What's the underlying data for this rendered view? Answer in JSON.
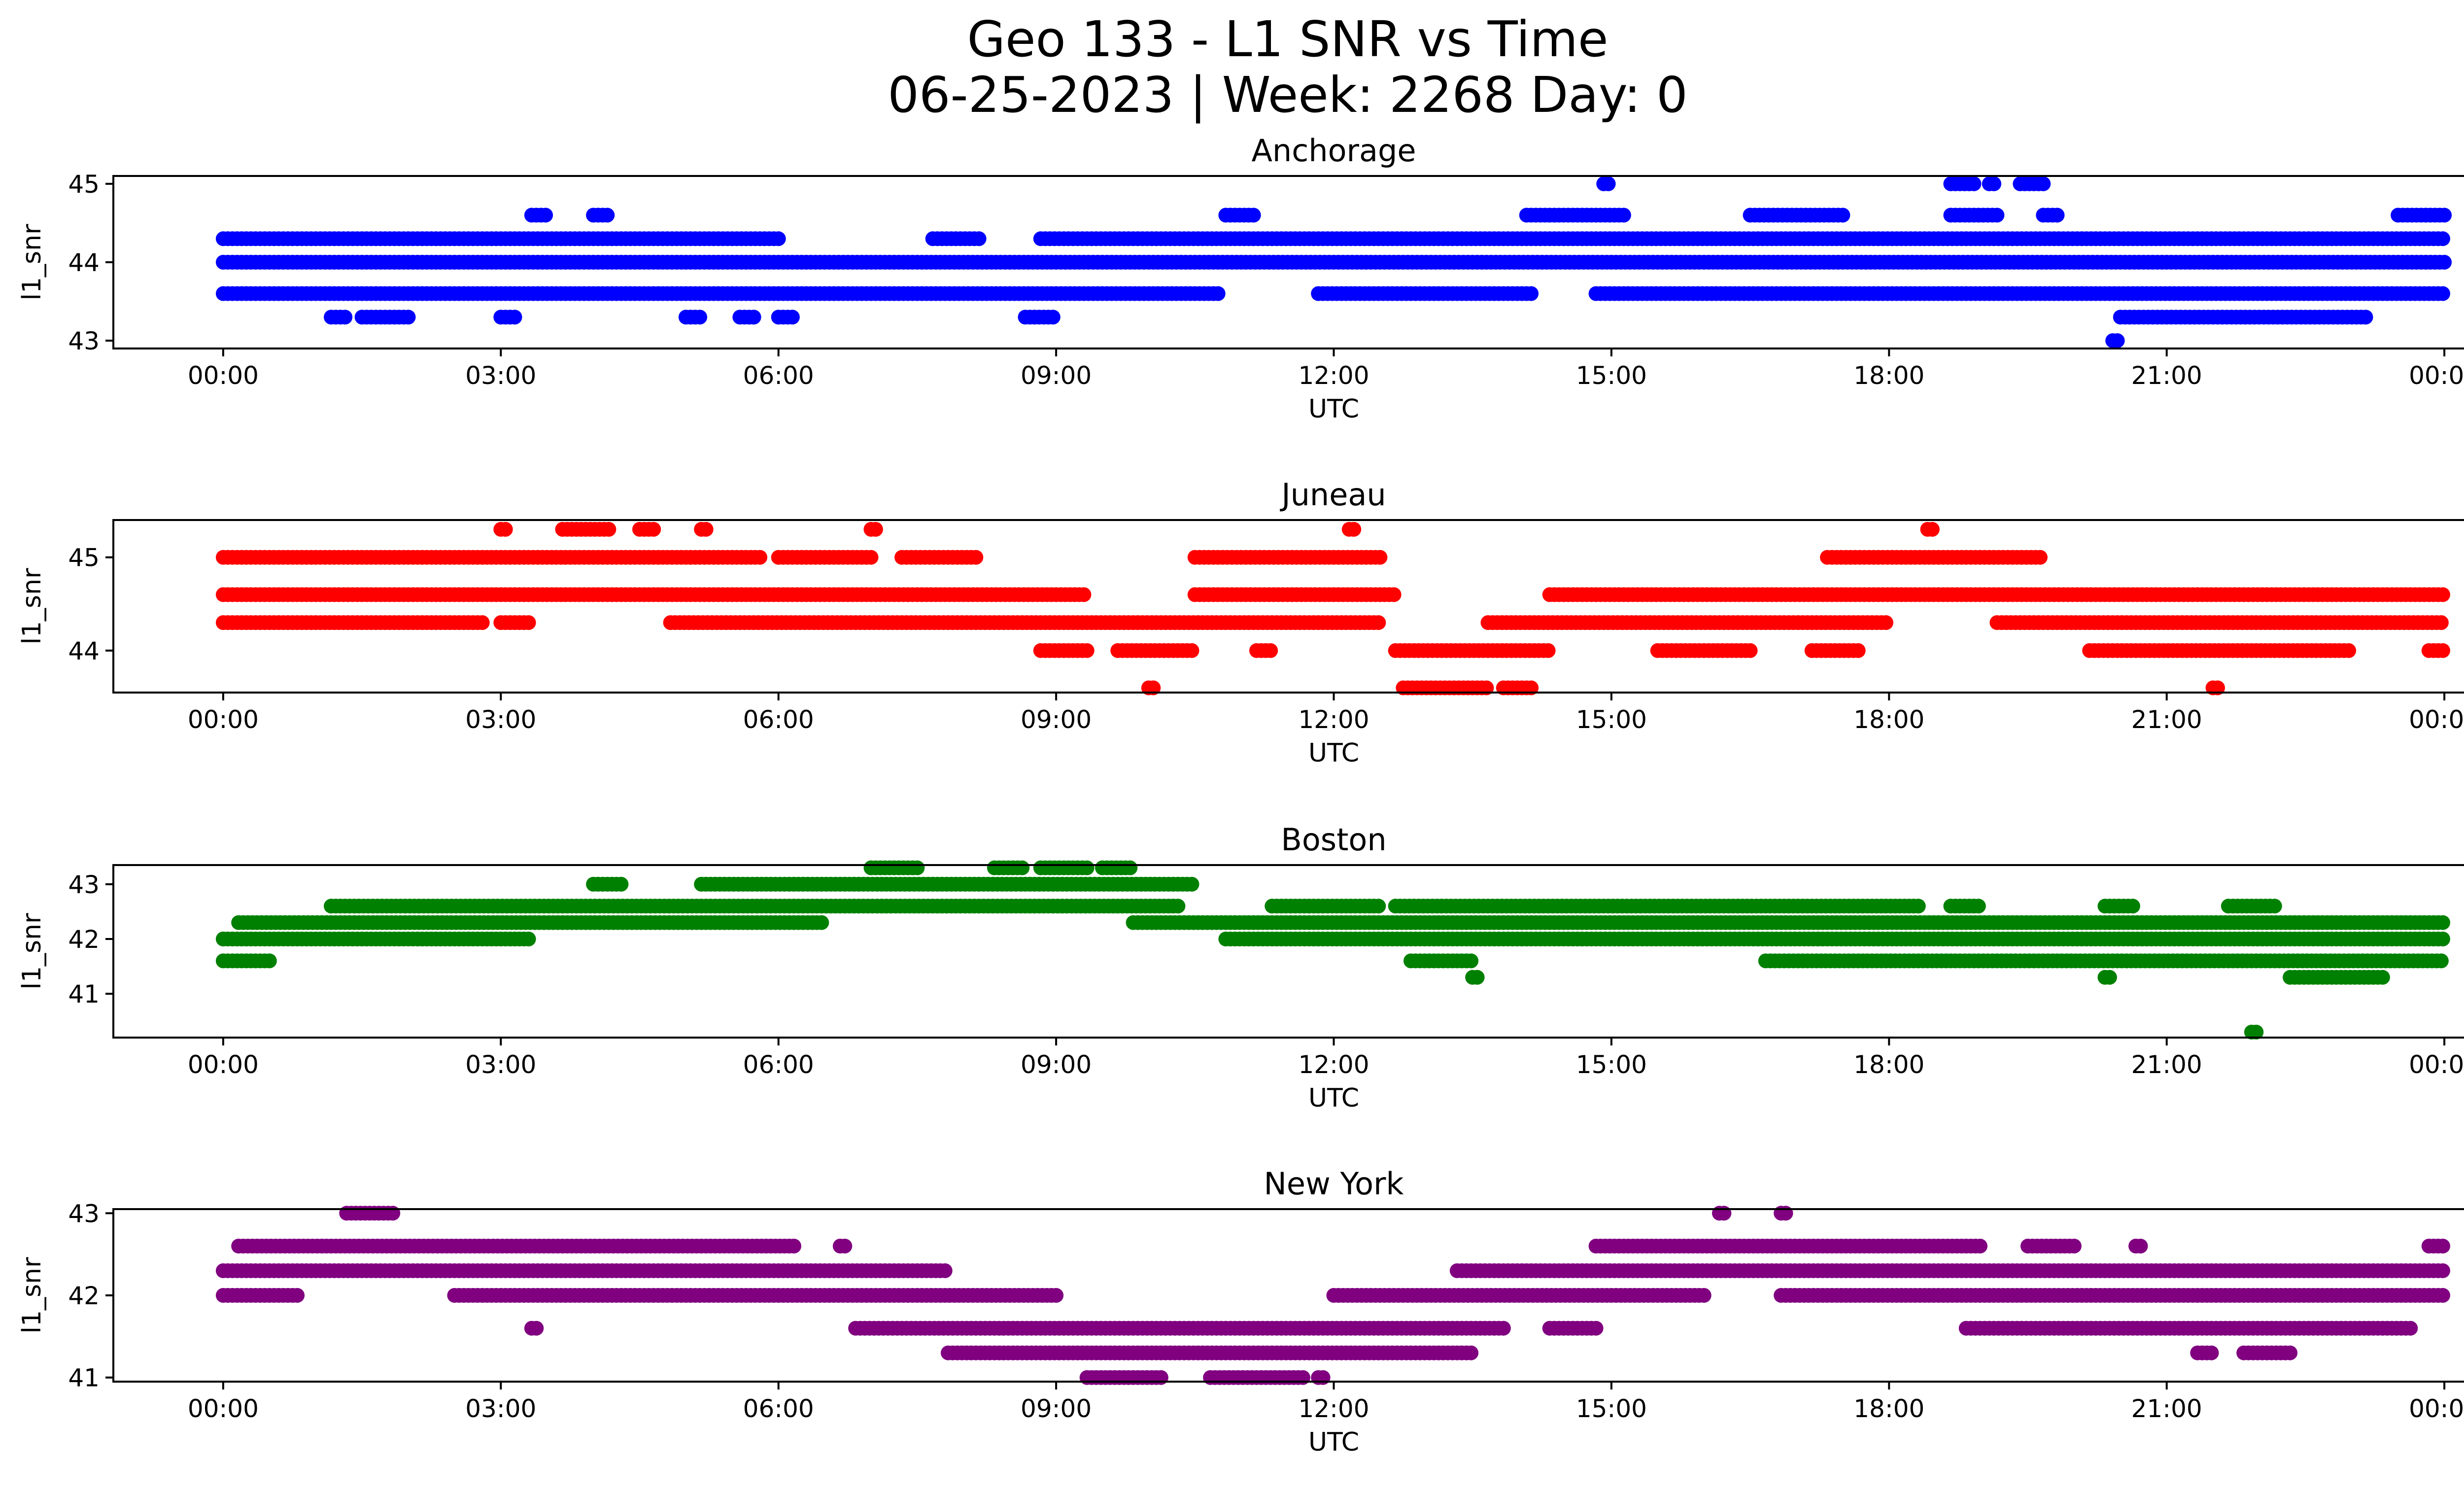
{
  "figure": {
    "title_line1": "Geo 133 - L1 SNR vs Time",
    "title_line2": "06-25-2023 | Week: 2268 Day: 0"
  },
  "chart_data": [
    {
      "type": "scatter",
      "title": "Anchorage",
      "xlabel": "UTC",
      "ylabel": "l1_snr",
      "color": "#0000ff",
      "xticks": [
        "00:00",
        "03:00",
        "06:00",
        "09:00",
        "12:00",
        "15:00",
        "18:00",
        "21:00",
        "00:00"
      ],
      "yticks": [
        43,
        44,
        45
      ],
      "ylim": [
        42.9,
        45.1
      ],
      "xlim": [
        "2023-06-25 00:00",
        "2023-06-26 00:00"
      ],
      "series": [
        {
          "level": 44.0,
          "segments": [
            [
              "00:00",
              "24:00"
            ]
          ]
        },
        {
          "level": 43.6,
          "segments": [
            [
              "00:00",
              "10:45"
            ],
            [
              "11:50",
              "14:10"
            ],
            [
              "14:50",
              "24:00"
            ]
          ]
        },
        {
          "level": 44.3,
          "segments": [
            [
              "00:00",
              "06:00"
            ],
            [
              "07:40",
              "08:10"
            ],
            [
              "08:50",
              "24:00"
            ]
          ]
        },
        {
          "level": 43.3,
          "segments": [
            [
              "01:10",
              "01:20"
            ],
            [
              "01:30",
              "02:00"
            ],
            [
              "03:00",
              "03:10"
            ],
            [
              "05:00",
              "05:10"
            ],
            [
              "05:35",
              "05:45"
            ],
            [
              "06:00",
              "06:10"
            ],
            [
              "08:40",
              "09:00"
            ],
            [
              "20:30",
              "23:10"
            ]
          ]
        },
        {
          "level": 44.6,
          "segments": [
            [
              "03:20",
              "03:30"
            ],
            [
              "04:00",
              "04:10"
            ],
            [
              "10:50",
              "11:10"
            ],
            [
              "14:05",
              "15:10"
            ],
            [
              "16:30",
              "17:30"
            ],
            [
              "18:40",
              "19:10"
            ],
            [
              "19:40",
              "19:50"
            ],
            [
              "23:30",
              "24:00"
            ]
          ]
        },
        {
          "level": 45.0,
          "segments": [
            [
              "14:55",
              "14:58"
            ],
            [
              "18:40",
              "18:55"
            ],
            [
              "19:05",
              "19:10"
            ],
            [
              "19:25",
              "19:40"
            ]
          ]
        },
        {
          "level": 43.0,
          "segments": [
            [
              "20:25",
              "20:30"
            ]
          ]
        }
      ]
    },
    {
      "type": "scatter",
      "title": "Juneau",
      "xlabel": "UTC",
      "ylabel": "l1_snr",
      "color": "#ff0000",
      "xticks": [
        "00:00",
        "03:00",
        "06:00",
        "09:00",
        "12:00",
        "15:00",
        "18:00",
        "21:00",
        "00:00"
      ],
      "yticks": [
        44,
        45
      ],
      "ylim": [
        43.55,
        45.4
      ],
      "xlim": [
        "2023-06-25 00:00",
        "2023-06-26 00:00"
      ],
      "series": [
        {
          "level": 45.0,
          "segments": [
            [
              "00:00",
              "05:50"
            ],
            [
              "06:00",
              "07:00"
            ],
            [
              "07:20",
              "08:10"
            ],
            [
              "10:30",
              "12:30"
            ],
            [
              "17:20",
              "19:40"
            ]
          ]
        },
        {
          "level": 44.6,
          "segments": [
            [
              "00:00",
              "09:20"
            ],
            [
              "10:30",
              "12:40"
            ],
            [
              "14:20",
              "24:00"
            ]
          ]
        },
        {
          "level": 44.3,
          "segments": [
            [
              "00:00",
              "02:50"
            ],
            [
              "03:00",
              "03:20"
            ],
            [
              "04:50",
              "12:30"
            ],
            [
              "13:40",
              "18:00"
            ],
            [
              "19:10",
              "24:00"
            ]
          ]
        },
        {
          "level": 44.0,
          "segments": [
            [
              "08:50",
              "09:20"
            ],
            [
              "09:40",
              "10:30"
            ],
            [
              "11:10",
              "11:20"
            ],
            [
              "12:40",
              "14:20"
            ],
            [
              "15:30",
              "16:30"
            ],
            [
              "17:10",
              "17:40"
            ],
            [
              "20:10",
              "23:00"
            ],
            [
              "23:50",
              "24:00"
            ]
          ]
        },
        {
          "level": 43.6,
          "segments": [
            [
              "10:00",
              "10:05"
            ],
            [
              "12:45",
              "13:40"
            ],
            [
              "13:50",
              "14:10"
            ],
            [
              "21:30",
              "21:35"
            ]
          ]
        },
        {
          "level": 45.3,
          "segments": [
            [
              "03:00",
              "03:05"
            ],
            [
              "03:40",
              "04:10"
            ],
            [
              "04:30",
              "04:40"
            ],
            [
              "05:10",
              "05:15"
            ],
            [
              "07:00",
              "07:05"
            ],
            [
              "12:10",
              "12:15"
            ],
            [
              "18:25",
              "18:30"
            ]
          ]
        }
      ]
    },
    {
      "type": "scatter",
      "title": "Boston",
      "xlabel": "UTC",
      "ylabel": "l1_snr",
      "color": "#008000",
      "xticks": [
        "00:00",
        "03:00",
        "06:00",
        "09:00",
        "12:00",
        "15:00",
        "18:00",
        "21:00",
        "00:00"
      ],
      "yticks": [
        41,
        42,
        43
      ],
      "ylim": [
        40.2,
        43.35
      ],
      "xlim": [
        "2023-06-25 00:00",
        "2023-06-26 00:00"
      ],
      "series": [
        {
          "level": 42.0,
          "segments": [
            [
              "00:00",
              "03:20"
            ],
            [
              "10:50",
              "24:00"
            ]
          ]
        },
        {
          "level": 41.6,
          "segments": [
            [
              "00:00",
              "00:30"
            ],
            [
              "12:50",
              "13:30"
            ],
            [
              "16:40",
              "24:00"
            ]
          ]
        },
        {
          "level": 42.3,
          "segments": [
            [
              "00:10",
              "06:30"
            ],
            [
              "09:50",
              "24:00"
            ]
          ]
        },
        {
          "level": 42.6,
          "segments": [
            [
              "01:10",
              "10:20"
            ],
            [
              "11:20",
              "12:30"
            ],
            [
              "12:40",
              "18:20"
            ],
            [
              "18:40",
              "19:00"
            ],
            [
              "20:20",
              "20:40"
            ],
            [
              "21:40",
              "22:10"
            ]
          ]
        },
        {
          "level": 43.0,
          "segments": [
            [
              "04:00",
              "04:20"
            ],
            [
              "05:10",
              "10:30"
            ]
          ]
        },
        {
          "level": 43.3,
          "segments": [
            [
              "07:00",
              "07:30"
            ],
            [
              "08:20",
              "08:40"
            ],
            [
              "08:50",
              "09:20"
            ],
            [
              "09:30",
              "09:50"
            ]
          ]
        },
        {
          "level": 41.3,
          "segments": [
            [
              "13:30",
              "13:35"
            ],
            [
              "20:20",
              "20:25"
            ],
            [
              "22:20",
              "23:20"
            ]
          ]
        },
        {
          "level": 40.3,
          "segments": [
            [
              "21:55",
              "22:00"
            ]
          ]
        }
      ]
    },
    {
      "type": "scatter",
      "title": "New York",
      "xlabel": "UTC",
      "ylabel": "l1_snr",
      "color": "#800080",
      "xticks": [
        "00:00",
        "03:00",
        "06:00",
        "09:00",
        "12:00",
        "15:00",
        "18:00",
        "21:00",
        "00:00"
      ],
      "yticks": [
        41,
        42,
        43
      ],
      "ylim": [
        40.95,
        43.05
      ],
      "xlim": [
        "2023-06-25 00:00",
        "2023-06-26 00:00"
      ],
      "series": [
        {
          "level": 42.3,
          "segments": [
            [
              "00:00",
              "07:50"
            ],
            [
              "13:20",
              "24:00"
            ]
          ]
        },
        {
          "level": 42.0,
          "segments": [
            [
              "00:00",
              "00:50"
            ],
            [
              "02:30",
              "09:00"
            ],
            [
              "12:00",
              "16:00"
            ],
            [
              "16:50",
              "24:00"
            ]
          ]
        },
        {
          "level": 42.6,
          "segments": [
            [
              "00:10",
              "06:10"
            ],
            [
              "06:40",
              "06:45"
            ],
            [
              "14:50",
              "19:00"
            ],
            [
              "19:30",
              "20:00"
            ],
            [
              "20:40",
              "20:45"
            ],
            [
              "23:50",
              "24:00"
            ]
          ]
        },
        {
          "level": 41.6,
          "segments": [
            [
              "03:20",
              "03:25"
            ],
            [
              "06:50",
              "13:50"
            ],
            [
              "14:20",
              "14:50"
            ],
            [
              "18:50",
              "23:40"
            ]
          ]
        },
        {
          "level": 41.3,
          "segments": [
            [
              "07:50",
              "13:30"
            ],
            [
              "21:20",
              "21:30"
            ],
            [
              "21:50",
              "22:20"
            ]
          ]
        },
        {
          "level": 41.0,
          "segments": [
            [
              "09:20",
              "10:10"
            ],
            [
              "10:40",
              "11:40"
            ],
            [
              "11:50",
              "11:55"
            ]
          ]
        },
        {
          "level": 43.0,
          "segments": [
            [
              "01:20",
              "01:50"
            ],
            [
              "16:10",
              "16:15"
            ],
            [
              "16:50",
              "16:55"
            ]
          ]
        }
      ]
    }
  ]
}
